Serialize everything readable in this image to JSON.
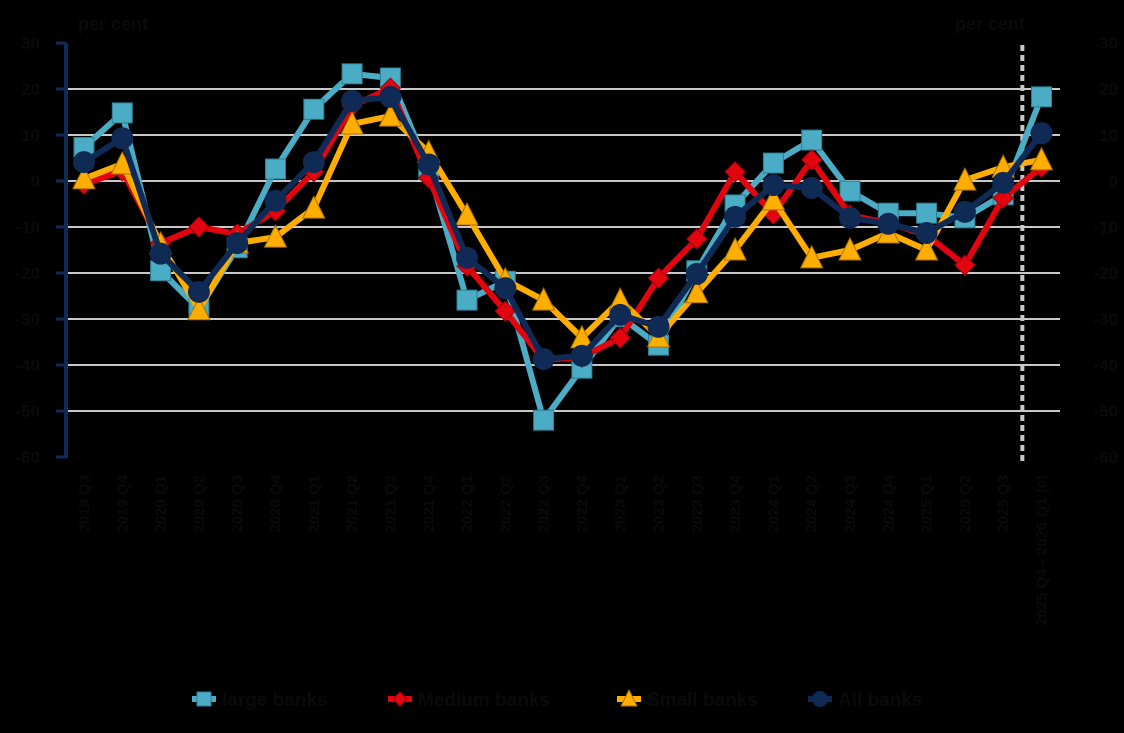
{
  "chart_data": {
    "type": "line",
    "title": "",
    "ylabel_left": "per cent",
    "ylabel_right": "per cent",
    "xlabel": "",
    "ylim": [
      -60,
      30
    ],
    "yticks": [
      30,
      20,
      10,
      0,
      -10,
      -20,
      -30,
      -40,
      -50,
      -60
    ],
    "grid": true,
    "legend_position": "bottom",
    "forecast_marker": "dashed vertical line before last category",
    "categories": [
      "2019 Q3",
      "2019 Q4",
      "2020 Q1",
      "2020 Q2",
      "2020 Q3",
      "2020 Q4",
      "2021 Q1",
      "2021 Q2",
      "2021 Q3",
      "2021 Q4",
      "2022 Q1",
      "2022 Q2",
      "2022 Q3",
      "2022 Q4",
      "2023 Q1",
      "2023 Q2",
      "2023 Q3",
      "2023 Q4",
      "2024 Q1",
      "2024 Q2",
      "2024 Q3",
      "2024 Q4",
      "2025 Q1",
      "2025 Q2",
      "2025 Q3",
      "2025 Q4 - 2026 Q1 (e)"
    ],
    "series": [
      {
        "name": "large banks",
        "color": "#4BACC6",
        "marker": "square",
        "values": [
          7.3,
          14.8,
          -19.5,
          -27.8,
          -14.5,
          2.6,
          15.6,
          23.3,
          22.4,
          2.5,
          -25.9,
          -21.8,
          -52.0,
          -40.7,
          -29.5,
          -35.7,
          -19.5,
          -5.2,
          3.9,
          8.9,
          -2.2,
          -7.0,
          -7.0,
          -8.0,
          -3.0,
          18.3
        ]
      },
      {
        "name": "Medium banks",
        "color": "#E2040F",
        "marker": "diamond",
        "values": [
          -0.7,
          2.2,
          -13.5,
          -10.0,
          -11.5,
          -6.5,
          2.0,
          16.3,
          20.2,
          0.7,
          -18.5,
          -28.3,
          -38.9,
          -38.3,
          -34.1,
          -21.1,
          -12.6,
          2.0,
          -7.2,
          4.6,
          -7.4,
          -9.2,
          -11.7,
          -18.3,
          -3.7,
          3.0
        ]
      },
      {
        "name": "Small banks",
        "color": "#FFAE00",
        "marker": "triangle",
        "values": [
          0.5,
          3.7,
          -13.7,
          -28.0,
          -13.5,
          -12.2,
          -5.9,
          12.4,
          14.1,
          6.2,
          -7.4,
          -21.5,
          -25.9,
          -34.1,
          -25.9,
          -33.9,
          -24.3,
          -15.0,
          -4.1,
          -16.7,
          -15.0,
          -11.3,
          -15.0,
          0.2,
          3.0,
          4.6
        ]
      },
      {
        "name": "All banks",
        "color": "#0F2A54",
        "marker": "circle",
        "values": [
          4.1,
          9.3,
          -15.8,
          -24.1,
          -13.5,
          -4.3,
          4.1,
          17.4,
          18.3,
          3.6,
          -16.7,
          -23.3,
          -38.7,
          -38.0,
          -29.1,
          -31.7,
          -20.2,
          -7.8,
          -0.9,
          -1.5,
          -8.0,
          -9.3,
          -11.3,
          -6.7,
          -0.4,
          10.4
        ]
      }
    ]
  },
  "colors": {
    "background": "#000000",
    "gridline": "#C8C8C8",
    "axis": "#0F2A54",
    "forecast_line": "#C8C8C8"
  }
}
